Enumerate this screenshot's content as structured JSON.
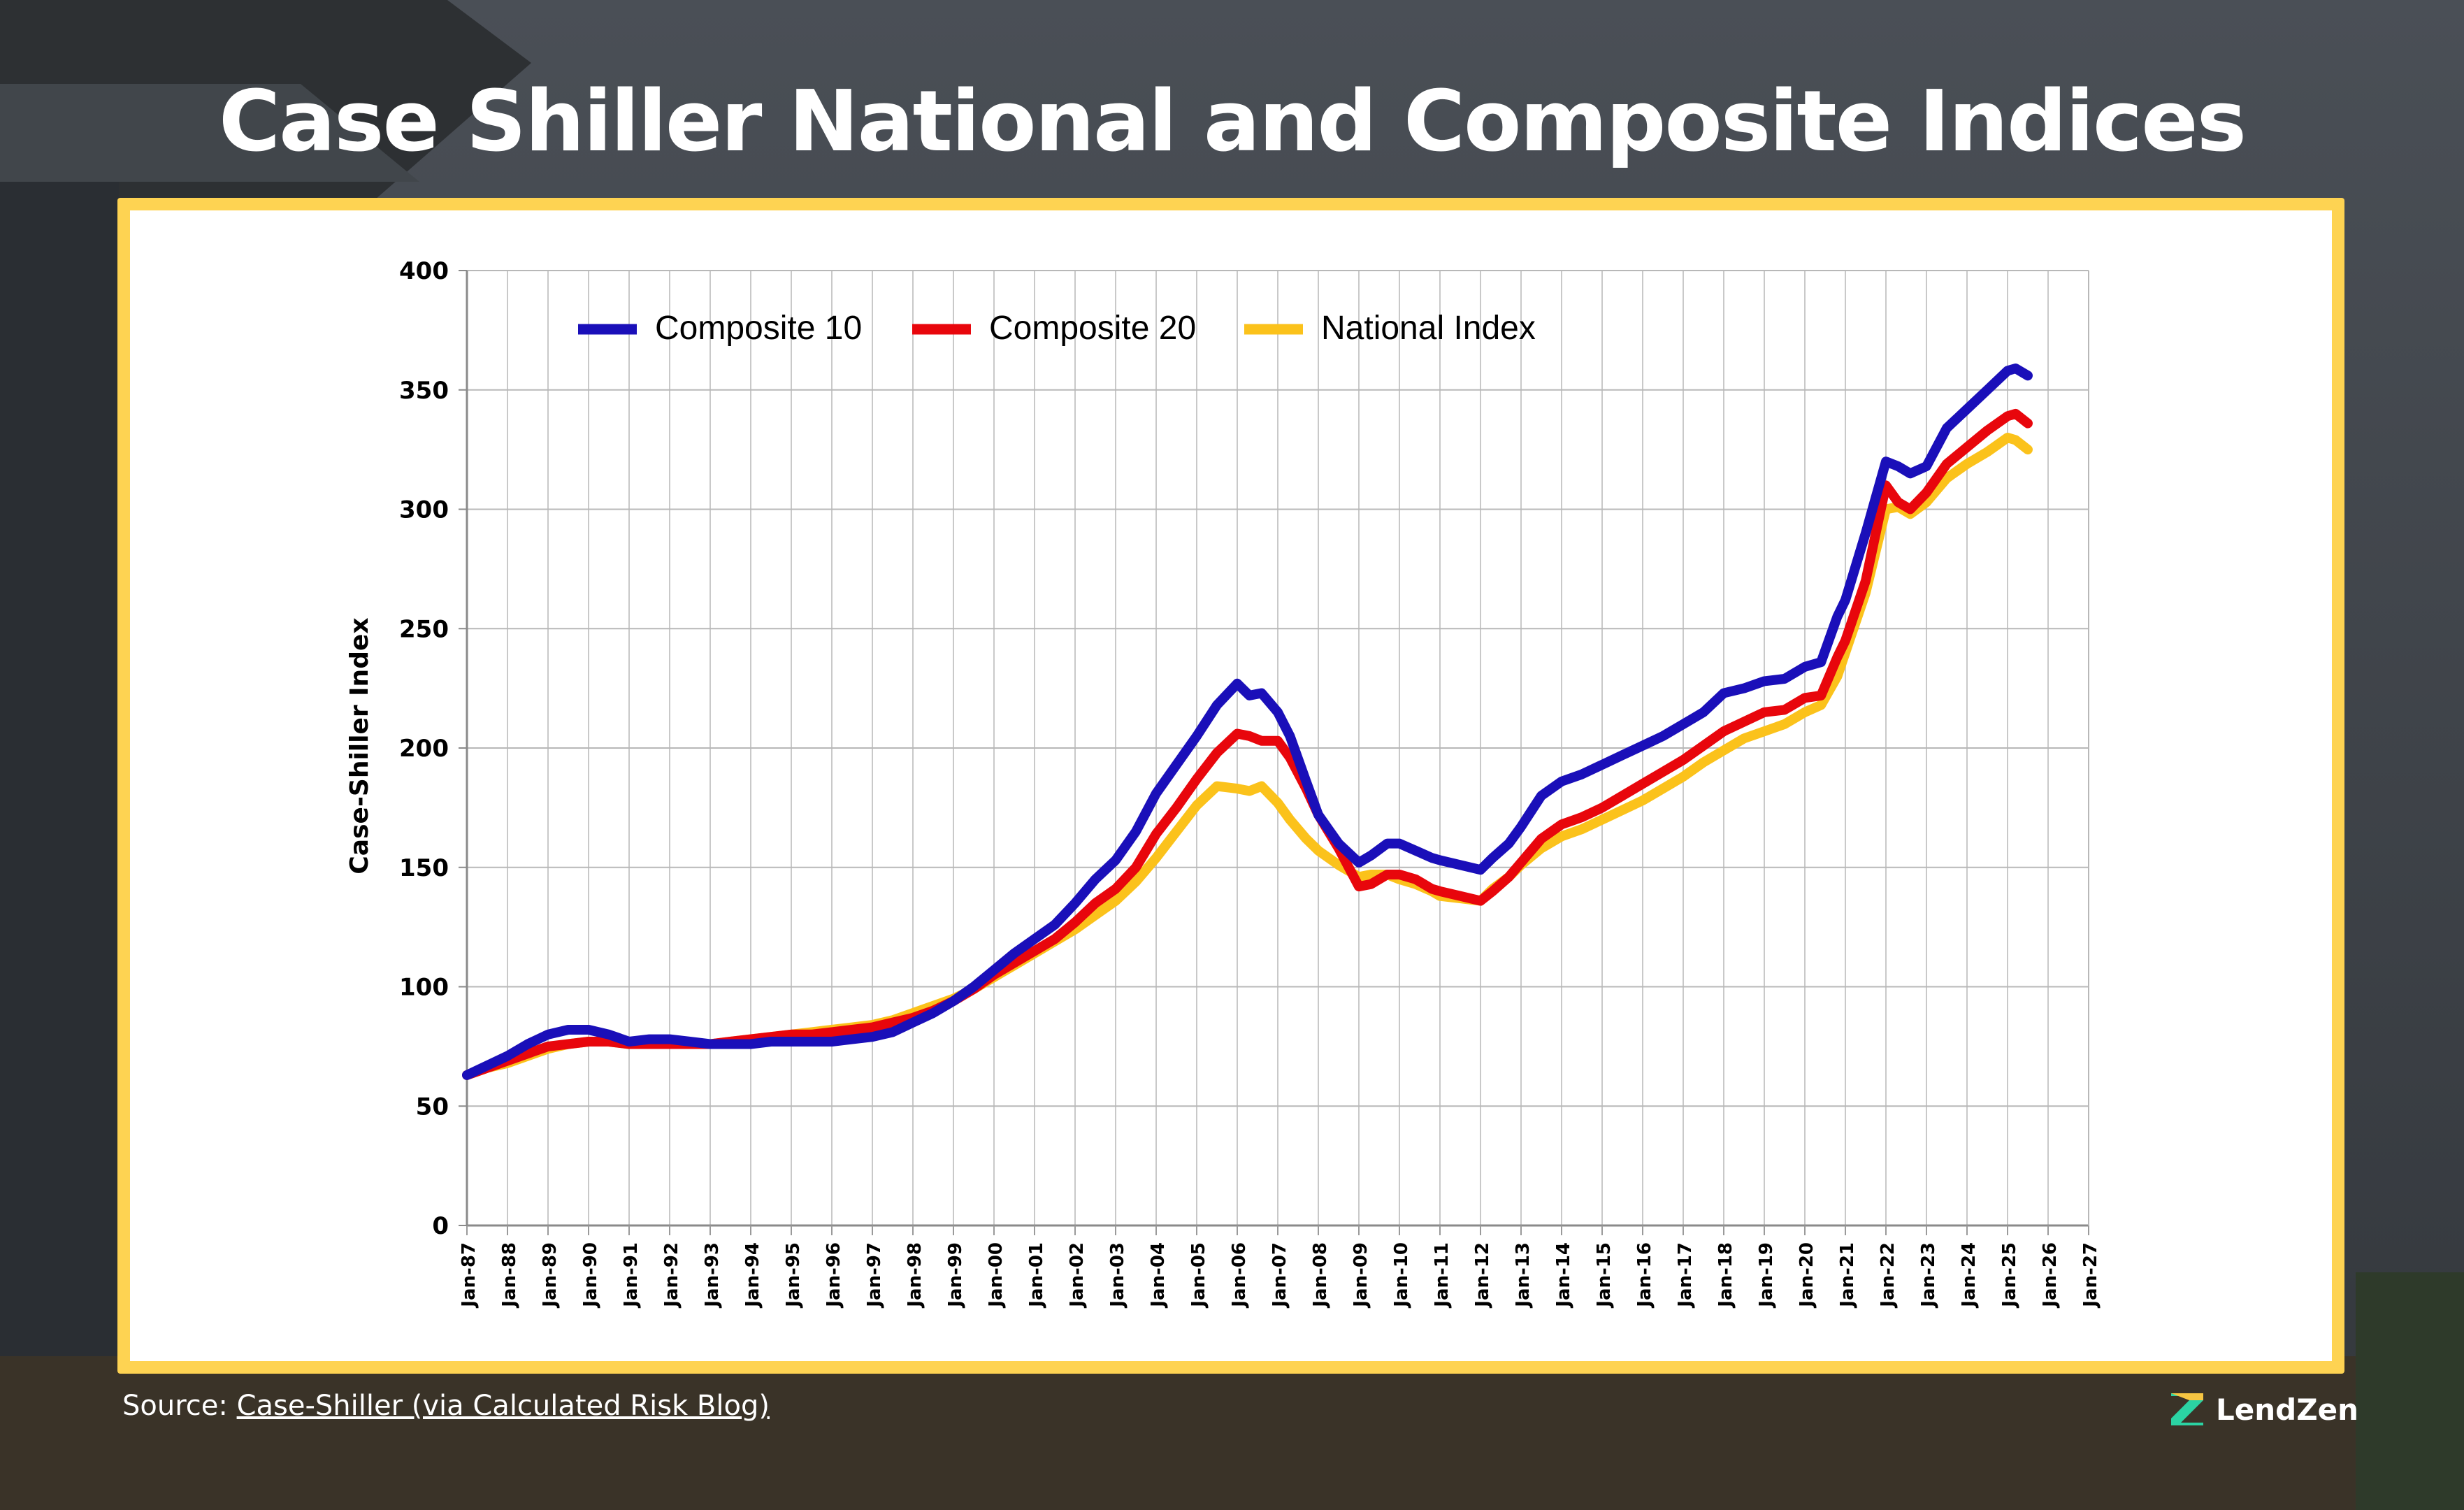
{
  "title": "Case Shiller National and Composite Indices",
  "source": {
    "prefix": "Source: ",
    "link_text": "Case-Shiller (via Calculated Risk Blog)"
  },
  "brand": {
    "name": "LendZen"
  },
  "colors": {
    "frame": "#fed352",
    "composite10": "#1a0fb9",
    "composite20": "#e8060c",
    "national": "#fbc21b"
  },
  "chart_data": {
    "type": "line",
    "title": "",
    "xlabel": "",
    "ylabel": "Case-Shiller Index",
    "ylim": [
      0,
      400
    ],
    "yticks": [
      0,
      50,
      100,
      150,
      200,
      250,
      300,
      350,
      400
    ],
    "xlim": [
      1987,
      2027
    ],
    "x_tick_labels": [
      "Jan-87",
      "Jan-88",
      "Jan-89",
      "Jan-90",
      "Jan-91",
      "Jan-92",
      "Jan-93",
      "Jan-94",
      "Jan-95",
      "Jan-96",
      "Jan-97",
      "Jan-98",
      "Jan-99",
      "Jan-00",
      "Jan-01",
      "Jan-02",
      "Jan-03",
      "Jan-04",
      "Jan-05",
      "Jan-06",
      "Jan-07",
      "Jan-08",
      "Jan-09",
      "Jan-10",
      "Jan-11",
      "Jan-12",
      "Jan-13",
      "Jan-14",
      "Jan-15",
      "Jan-16",
      "Jan-17",
      "Jan-18",
      "Jan-19",
      "Jan-20",
      "Jan-21",
      "Jan-22",
      "Jan-23",
      "Jan-24",
      "Jan-25",
      "Jan-26",
      "Jan-27"
    ],
    "grid": true,
    "legend_position": "top-left",
    "series": [
      {
        "name": "Composite 10",
        "color": "#1a0fb9",
        "x": [
          1987.0,
          1987.5,
          1988.0,
          1988.5,
          1989.0,
          1989.5,
          1990.0,
          1990.5,
          1991.0,
          1991.5,
          1992.0,
          1992.5,
          1993.0,
          1993.5,
          1994.0,
          1994.5,
          1995.0,
          1995.5,
          1996.0,
          1996.5,
          1997.0,
          1997.5,
          1998.0,
          1998.5,
          1999.0,
          1999.5,
          2000.0,
          2000.5,
          2001.0,
          2001.5,
          2002.0,
          2002.5,
          2003.0,
          2003.5,
          2004.0,
          2004.5,
          2005.0,
          2005.5,
          2006.0,
          2006.3,
          2006.6,
          2007.0,
          2007.3,
          2007.7,
          2008.0,
          2008.5,
          2009.0,
          2009.3,
          2009.7,
          2010.0,
          2010.4,
          2010.8,
          2011.0,
          2011.5,
          2012.0,
          2012.3,
          2012.7,
          2013.0,
          2013.5,
          2014.0,
          2014.5,
          2015.0,
          2015.5,
          2016.0,
          2016.5,
          2017.0,
          2017.5,
          2018.0,
          2018.5,
          2019.0,
          2019.5,
          2020.0,
          2020.4,
          2020.8,
          2021.0,
          2021.5,
          2022.0,
          2022.3,
          2022.6,
          2023.0,
          2023.5,
          2024.0,
          2024.5,
          2025.0,
          2025.2,
          2025.5
        ],
        "values": [
          63,
          67,
          71,
          76,
          80,
          82,
          82,
          80,
          77,
          78,
          78,
          77,
          76,
          76,
          76,
          77,
          77,
          77,
          77,
          78,
          79,
          81,
          85,
          89,
          94,
          100,
          107,
          114,
          120,
          126,
          135,
          145,
          153,
          165,
          181,
          193,
          205,
          218,
          227,
          222,
          223,
          215,
          205,
          186,
          172,
          160,
          152,
          155,
          160,
          160,
          157,
          154,
          153,
          151,
          149,
          154,
          160,
          167,
          180,
          186,
          189,
          193,
          197,
          201,
          205,
          210,
          215,
          223,
          225,
          228,
          229,
          234,
          236,
          255,
          262,
          290,
          320,
          318,
          315,
          318,
          334,
          342,
          350,
          358,
          359,
          356
        ]
      },
      {
        "name": "Composite 20",
        "color": "#e8060c",
        "x": [
          1987.0,
          1987.5,
          1988.0,
          1988.5,
          1989.0,
          1989.5,
          1990.0,
          1990.5,
          1991.0,
          1991.5,
          1992.0,
          1992.5,
          1993.0,
          1993.5,
          1994.0,
          1994.5,
          1995.0,
          1995.5,
          1996.0,
          1996.5,
          1997.0,
          1997.5,
          1998.0,
          1998.5,
          1999.0,
          1999.5,
          2000.0,
          2000.5,
          2001.0,
          2001.5,
          2002.0,
          2002.5,
          2003.0,
          2003.5,
          2004.0,
          2004.5,
          2005.0,
          2005.5,
          2006.0,
          2006.3,
          2006.6,
          2007.0,
          2007.3,
          2007.7,
          2008.0,
          2008.5,
          2009.0,
          2009.3,
          2009.7,
          2010.0,
          2010.4,
          2010.8,
          2011.0,
          2011.5,
          2012.0,
          2012.3,
          2012.7,
          2013.0,
          2013.5,
          2014.0,
          2014.5,
          2015.0,
          2015.5,
          2016.0,
          2016.5,
          2017.0,
          2017.5,
          2018.0,
          2018.5,
          2019.0,
          2019.5,
          2020.0,
          2020.4,
          2020.8,
          2021.0,
          2021.5,
          2022.0,
          2022.3,
          2022.6,
          2023.0,
          2023.5,
          2024.0,
          2024.5,
          2025.0,
          2025.2,
          2025.5
        ],
        "values": [
          63,
          66,
          69,
          72,
          75,
          76,
          77,
          77,
          76,
          76,
          76,
          76,
          76,
          77,
          78,
          79,
          80,
          80,
          81,
          82,
          83,
          85,
          87,
          90,
          94,
          99,
          105,
          110,
          115,
          120,
          127,
          135,
          141,
          150,
          164,
          175,
          187,
          198,
          206,
          205,
          203,
          203,
          196,
          183,
          172,
          158,
          142,
          143,
          147,
          147,
          145,
          141,
          140,
          138,
          136,
          140,
          146,
          152,
          162,
          168,
          171,
          175,
          180,
          185,
          190,
          195,
          201,
          207,
          211,
          215,
          216,
          221,
          222,
          238,
          245,
          270,
          310,
          303,
          300,
          307,
          319,
          326,
          333,
          339,
          340,
          336
        ]
      },
      {
        "name": "National Index",
        "color": "#fbc21b",
        "x": [
          1987.0,
          1987.5,
          1988.0,
          1988.5,
          1989.0,
          1989.5,
          1990.0,
          1990.5,
          1991.0,
          1991.5,
          1992.0,
          1992.5,
          1993.0,
          1993.5,
          1994.0,
          1994.5,
          1995.0,
          1995.5,
          1996.0,
          1996.5,
          1997.0,
          1997.5,
          1998.0,
          1998.5,
          1999.0,
          1999.5,
          2000.0,
          2000.5,
          2001.0,
          2001.5,
          2002.0,
          2002.5,
          2003.0,
          2003.5,
          2004.0,
          2004.5,
          2005.0,
          2005.5,
          2006.0,
          2006.3,
          2006.6,
          2007.0,
          2007.3,
          2007.7,
          2008.0,
          2008.5,
          2009.0,
          2009.3,
          2009.7,
          2010.0,
          2010.4,
          2010.8,
          2011.0,
          2011.5,
          2012.0,
          2012.3,
          2012.7,
          2013.0,
          2013.5,
          2014.0,
          2014.5,
          2015.0,
          2015.5,
          2016.0,
          2016.5,
          2017.0,
          2017.5,
          2018.0,
          2018.5,
          2019.0,
          2019.5,
          2020.0,
          2020.4,
          2020.8,
          2021.0,
          2021.5,
          2022.0,
          2022.3,
          2022.6,
          2023.0,
          2023.5,
          2024.0,
          2024.5,
          2025.0,
          2025.2,
          2025.5
        ],
        "values": [
          63,
          66,
          68,
          71,
          74,
          76,
          77,
          77,
          76,
          76,
          76,
          76,
          76,
          77,
          78,
          79,
          80,
          81,
          82,
          83,
          84,
          86,
          89,
          92,
          95,
          99,
          104,
          109,
          114,
          119,
          124,
          130,
          136,
          144,
          154,
          165,
          176,
          184,
          183,
          182,
          184,
          177,
          170,
          162,
          157,
          151,
          146,
          147,
          147,
          145,
          143,
          140,
          138,
          137,
          136,
          141,
          146,
          151,
          158,
          163,
          166,
          170,
          174,
          178,
          183,
          188,
          194,
          199,
          204,
          207,
          210,
          215,
          218,
          230,
          240,
          265,
          300,
          301,
          298,
          303,
          313,
          319,
          324,
          330,
          329,
          325
        ]
      }
    ]
  }
}
